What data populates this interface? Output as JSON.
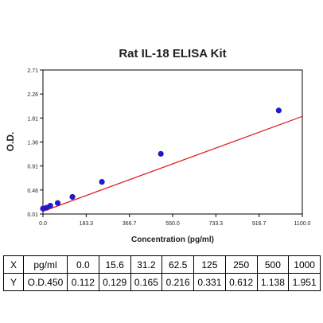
{
  "chart_data": {
    "type": "scatter",
    "title": "Rat IL-18 ELISA Kit",
    "xlabel": "Concentration (pg/ml)",
    "ylabel": "O.D.",
    "xlim": [
      0,
      1100
    ],
    "ylim": [
      0.01,
      2.71
    ],
    "x_ticks": [
      "0.0",
      "183.3",
      "366.7",
      "550.0",
      "733.3",
      "916.7",
      "1100.0"
    ],
    "y_ticks": [
      "0.01",
      "0.46",
      "0.91",
      "1.36",
      "1.81",
      "2.26",
      "2.71"
    ],
    "grid": false,
    "series": [
      {
        "type": "scatter",
        "x": [
          0,
          15.6,
          31.2,
          62.5,
          125,
          250,
          500,
          1000
        ],
        "y": [
          0.112,
          0.129,
          0.165,
          0.216,
          0.331,
          0.612,
          1.138,
          1.951
        ],
        "color": "#1a1adb"
      },
      {
        "type": "line",
        "x": [
          0,
          1100
        ],
        "y": [
          0.06,
          1.84
        ],
        "color": "#e02020"
      }
    ]
  },
  "table": {
    "rows": [
      {
        "label": "X",
        "unit": "pg/ml",
        "values": [
          "0.0",
          "15.6",
          "31.2",
          "62.5",
          "125",
          "250",
          "500",
          "1000"
        ]
      },
      {
        "label": "Y",
        "unit": "O.D.450",
        "values": [
          "0.112",
          "0.129",
          "0.165",
          "0.216",
          "0.331",
          "0.612",
          "1.138",
          "1.951"
        ]
      }
    ]
  }
}
